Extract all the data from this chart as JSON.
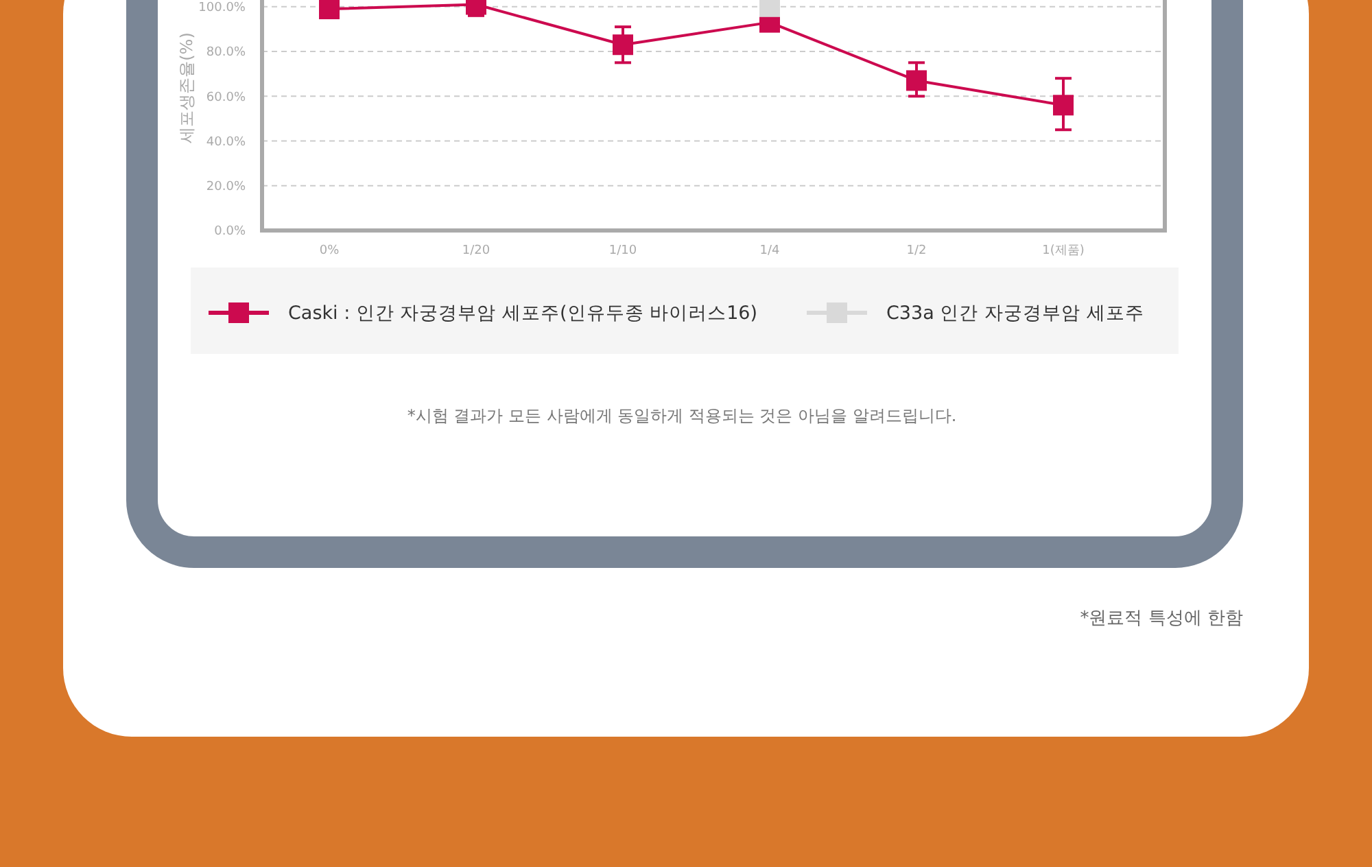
{
  "chart_data": {
    "type": "line",
    "ylabel": "세포생존율(%)",
    "categories": [
      "0%",
      "1/20",
      "1/10",
      "1/4",
      "1/2",
      "1(제품)"
    ],
    "series": [
      {
        "name": "Caski : 인간 자궁경부암 세포주(인유두종 바이러스16)",
        "color": "#cc0a4f",
        "values": [
          99,
          101,
          83,
          93,
          67,
          56
        ],
        "errors": [
          null,
          [
            96,
            103
          ],
          [
            75,
            91
          ],
          null,
          [
            60,
            75
          ],
          [
            45,
            68
          ]
        ]
      },
      {
        "name": "C33a 인간 자궁경부암 세포주",
        "color": "#d9d9d9",
        "values": [
          null,
          null,
          null,
          100,
          null,
          null
        ]
      }
    ],
    "ylim": [
      0,
      103
    ],
    "yticks": [
      {
        "value": 0,
        "label": "0.0%"
      },
      {
        "value": 20,
        "label": "20.0%"
      },
      {
        "value": 40,
        "label": "40.0%"
      },
      {
        "value": 60,
        "label": "60.0%"
      },
      {
        "value": 80,
        "label": "80.0%"
      },
      {
        "value": 100,
        "label": "100.0%"
      }
    ],
    "grid": "y",
    "legend": "bottom",
    "marker": "square",
    "line_style": "solid",
    "annotations": [
      "*시험 결과가 모든 사람에게 동일하게 적용되는 것은 아님을 알려드립니다.",
      "*원료적 특성에 한함"
    ]
  }
}
